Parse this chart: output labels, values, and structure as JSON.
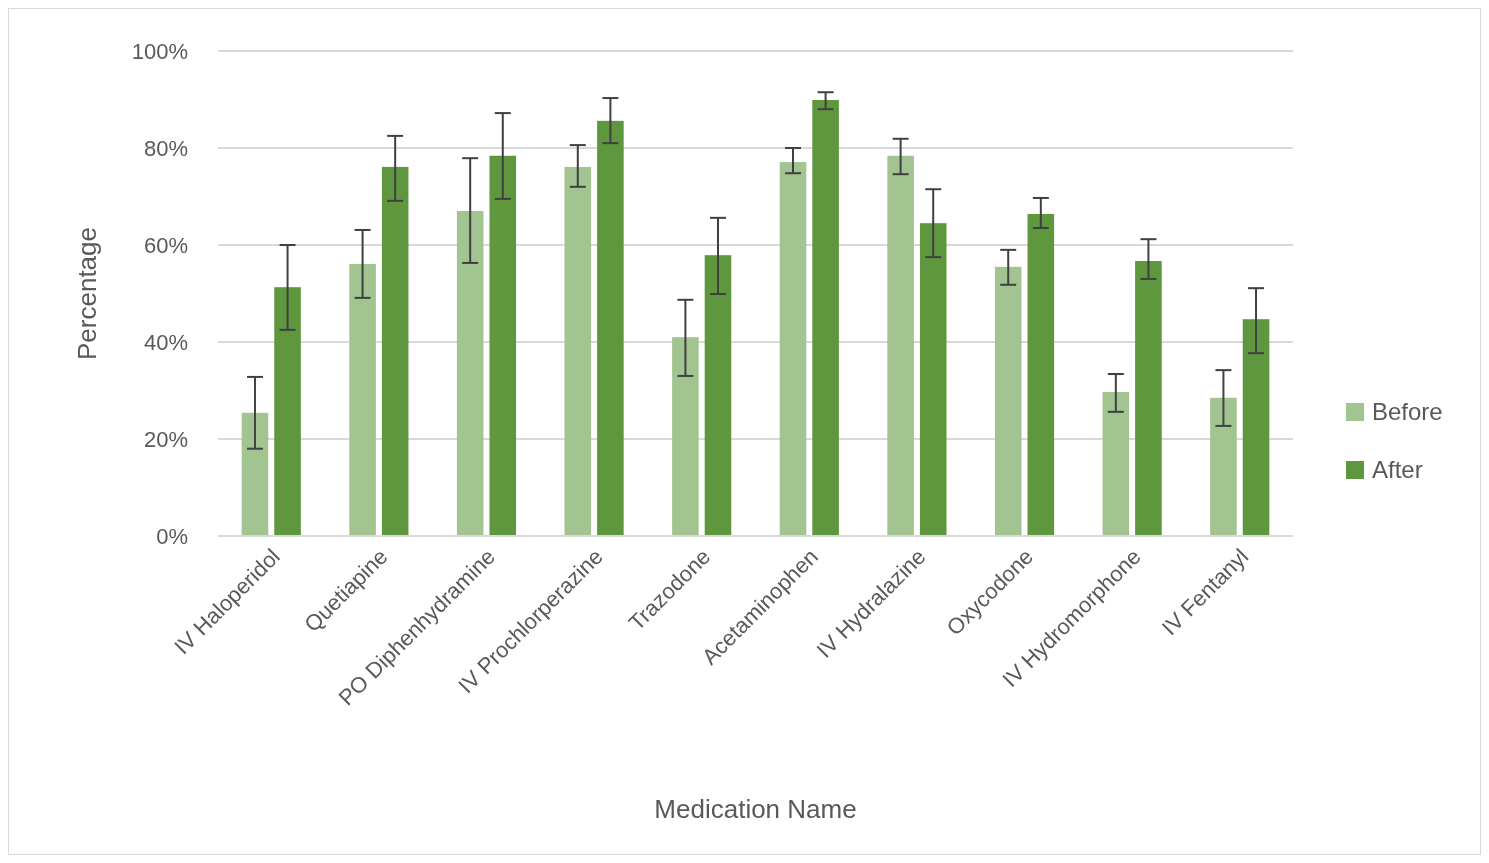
{
  "chart_data": {
    "type": "bar",
    "xlabel": "Medication Name",
    "ylabel": "Percentage",
    "categories": [
      "IV Haloperidol",
      "Quetiapine",
      "PO Diphenhydramine",
      "IV Prochlorperazine",
      "Trazodone",
      "Acetaminophen",
      "IV Hydralazine",
      "Oxycodone",
      "IV Hydromorphone",
      "IV Fentanyl"
    ],
    "series": [
      {
        "name": "Before",
        "color": "#a2c490",
        "values": [
          25.4,
          56.1,
          67,
          76.1,
          41,
          77.1,
          78.4,
          55.5,
          29.7,
          28.5
        ],
        "errors": [
          [
            18,
            32.8
          ],
          [
            49.1,
            63.1
          ],
          [
            56.3,
            77.9
          ],
          [
            72,
            80.6
          ],
          [
            33,
            48.7
          ],
          [
            74.8,
            80
          ],
          [
            74.6,
            81.9
          ],
          [
            51.8,
            59
          ],
          [
            25.6,
            33.4
          ],
          [
            22.7,
            34.2
          ]
        ]
      },
      {
        "name": "After",
        "color": "#5e973e",
        "values": [
          51.3,
          76.1,
          78.4,
          85.6,
          57.9,
          89.9,
          64.5,
          66.4,
          56.7,
          44.7
        ],
        "errors": [
          [
            42.5,
            60
          ],
          [
            69.1,
            82.5
          ],
          [
            69.5,
            87.2
          ],
          [
            81,
            90.3
          ],
          [
            49.9,
            65.6
          ],
          [
            88,
            91.5
          ],
          [
            57.5,
            71.5
          ],
          [
            63.5,
            69.7
          ],
          [
            53,
            61.2
          ],
          [
            37.7,
            51.1
          ]
        ]
      }
    ],
    "ylim": [
      0,
      100
    ],
    "yticks": [
      {
        "value": 0,
        "label": "0%"
      },
      {
        "value": 20,
        "label": "20%"
      },
      {
        "value": 40,
        "label": "40%"
      },
      {
        "value": 60,
        "label": "60%"
      },
      {
        "value": 80,
        "label": "80%"
      },
      {
        "value": 100,
        "label": "100%"
      }
    ],
    "grid": "y",
    "legend": "right"
  }
}
